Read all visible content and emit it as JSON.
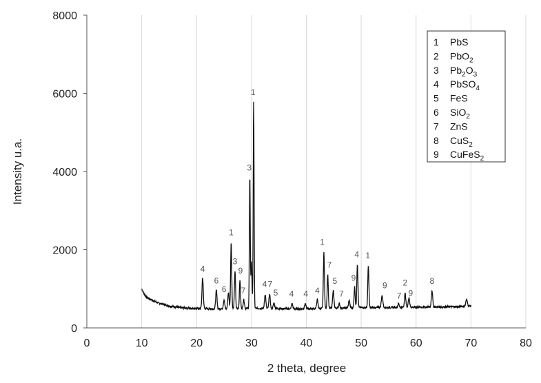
{
  "chart_data": {
    "type": "line",
    "title": "",
    "xlabel": "2 theta, degree",
    "ylabel": "Intensity u.a.",
    "xlim": [
      0,
      80
    ],
    "ylim": [
      0,
      8000
    ],
    "xticks": [
      0,
      10,
      20,
      30,
      40,
      50,
      60,
      70,
      80
    ],
    "yticks": [
      0,
      2000,
      4000,
      6000,
      8000
    ],
    "grid": "vertical",
    "legend_position": "top-right",
    "series_color": "#111111",
    "baseline": [
      [
        10.0,
        1000
      ],
      [
        10.5,
        850
      ],
      [
        11.0,
        780
      ],
      [
        12.0,
        700
      ],
      [
        13.0,
        640
      ],
      [
        14.0,
        600
      ],
      [
        15.0,
        560
      ],
      [
        16.0,
        540
      ],
      [
        17.0,
        520
      ],
      [
        18.0,
        510
      ],
      [
        19.0,
        500
      ],
      [
        20.0,
        495
      ],
      [
        22.0,
        490
      ],
      [
        24.0,
        488
      ],
      [
        26.0,
        490
      ],
      [
        28.0,
        495
      ],
      [
        30.0,
        500
      ],
      [
        32.0,
        500
      ],
      [
        34.0,
        495
      ],
      [
        36.0,
        490
      ],
      [
        38.0,
        485
      ],
      [
        40.0,
        490
      ],
      [
        42.0,
        495
      ],
      [
        44.0,
        500
      ],
      [
        46.0,
        505
      ],
      [
        48.0,
        515
      ],
      [
        50.0,
        520
      ],
      [
        52.0,
        520
      ],
      [
        54.0,
        520
      ],
      [
        56.0,
        525
      ],
      [
        58.0,
        530
      ],
      [
        60.0,
        530
      ],
      [
        62.0,
        535
      ],
      [
        64.0,
        535
      ],
      [
        66.0,
        540
      ],
      [
        68.0,
        545
      ],
      [
        70.0,
        560
      ]
    ],
    "peaks": [
      {
        "x": 21.1,
        "y": 1280,
        "w": 0.12
      },
      {
        "x": 23.6,
        "y": 960,
        "w": 0.12
      },
      {
        "x": 25.0,
        "y": 720,
        "w": 0.12
      },
      {
        "x": 25.8,
        "y": 900,
        "w": 0.12
      },
      {
        "x": 26.3,
        "y": 2180,
        "w": 0.1
      },
      {
        "x": 27.0,
        "y": 1450,
        "w": 0.1
      },
      {
        "x": 27.9,
        "y": 1230,
        "w": 0.1
      },
      {
        "x": 28.6,
        "y": 720,
        "w": 0.12
      },
      {
        "x": 29.7,
        "y": 3850,
        "w": 0.08
      },
      {
        "x": 30.0,
        "y": 1700,
        "w": 0.1
      },
      {
        "x": 30.4,
        "y": 5770,
        "w": 0.08
      },
      {
        "x": 32.5,
        "y": 860,
        "w": 0.12
      },
      {
        "x": 33.3,
        "y": 860,
        "w": 0.12
      },
      {
        "x": 34.1,
        "y": 640,
        "w": 0.12
      },
      {
        "x": 37.4,
        "y": 620,
        "w": 0.12
      },
      {
        "x": 39.8,
        "y": 620,
        "w": 0.12
      },
      {
        "x": 42.0,
        "y": 720,
        "w": 0.12
      },
      {
        "x": 43.2,
        "y": 1930,
        "w": 0.1
      },
      {
        "x": 43.9,
        "y": 1360,
        "w": 0.1
      },
      {
        "x": 44.9,
        "y": 960,
        "w": 0.12
      },
      {
        "x": 46.0,
        "y": 620,
        "w": 0.12
      },
      {
        "x": 47.8,
        "y": 700,
        "w": 0.12
      },
      {
        "x": 48.8,
        "y": 1050,
        "w": 0.1
      },
      {
        "x": 49.3,
        "y": 1640,
        "w": 0.1
      },
      {
        "x": 51.3,
        "y": 1600,
        "w": 0.1
      },
      {
        "x": 53.8,
        "y": 820,
        "w": 0.14
      },
      {
        "x": 56.8,
        "y": 620,
        "w": 0.12
      },
      {
        "x": 58.0,
        "y": 880,
        "w": 0.12
      },
      {
        "x": 58.7,
        "y": 780,
        "w": 0.12
      },
      {
        "x": 62.9,
        "y": 960,
        "w": 0.12
      },
      {
        "x": 69.2,
        "y": 720,
        "w": 0.15
      }
    ],
    "annotations": [
      {
        "text": "4",
        "x": 21.1,
        "y": 1440
      },
      {
        "text": "6",
        "x": 23.6,
        "y": 1140
      },
      {
        "text": "6",
        "x": 25.0,
        "y": 920
      },
      {
        "text": "1",
        "x": 26.3,
        "y": 2370
      },
      {
        "text": "3",
        "x": 27.0,
        "y": 1630
      },
      {
        "text": "9",
        "x": 28.0,
        "y": 1390
      },
      {
        "text": "7",
        "x": 28.5,
        "y": 880
      },
      {
        "text": "3",
        "x": 29.6,
        "y": 4030
      },
      {
        "text": "1",
        "x": 30.3,
        "y": 5960
      },
      {
        "text": "4",
        "x": 32.4,
        "y": 1050
      },
      {
        "text": "7",
        "x": 33.4,
        "y": 1050
      },
      {
        "text": "5",
        "x": 34.4,
        "y": 830
      },
      {
        "text": "4",
        "x": 37.3,
        "y": 800
      },
      {
        "text": "4",
        "x": 39.9,
        "y": 800
      },
      {
        "text": "4",
        "x": 42.0,
        "y": 880
      },
      {
        "text": "1",
        "x": 42.9,
        "y": 2120
      },
      {
        "text": "7",
        "x": 44.2,
        "y": 1540
      },
      {
        "text": "5",
        "x": 45.2,
        "y": 1130
      },
      {
        "text": "7",
        "x": 46.4,
        "y": 800
      },
      {
        "text": "9",
        "x": 48.6,
        "y": 1210
      },
      {
        "text": "4",
        "x": 49.2,
        "y": 1810
      },
      {
        "text": "1",
        "x": 51.2,
        "y": 1780
      },
      {
        "text": "9",
        "x": 54.3,
        "y": 1010
      },
      {
        "text": "7",
        "x": 56.9,
        "y": 750
      },
      {
        "text": "2",
        "x": 58.0,
        "y": 1080
      },
      {
        "text": "9",
        "x": 59.0,
        "y": 820
      },
      {
        "text": "8",
        "x": 62.9,
        "y": 1130
      }
    ]
  },
  "legend": {
    "items": [
      {
        "num": "1",
        "base": "PbS",
        "sub": ""
      },
      {
        "num": "2",
        "base": "PbO",
        "sub": "2"
      },
      {
        "num": "3",
        "base": "Pb",
        "sub": "2",
        "base2": "O",
        "sub2": "3"
      },
      {
        "num": "4",
        "base": "PbSO",
        "sub": "4"
      },
      {
        "num": "5",
        "base": "FeS",
        "sub": ""
      },
      {
        "num": "6",
        "base": "SiO",
        "sub": "2"
      },
      {
        "num": "7",
        "base": "ZnS",
        "sub": ""
      },
      {
        "num": "8",
        "base": "CuS",
        "sub": "2"
      },
      {
        "num": "9",
        "base": "CuFeS",
        "sub": "2"
      }
    ]
  }
}
